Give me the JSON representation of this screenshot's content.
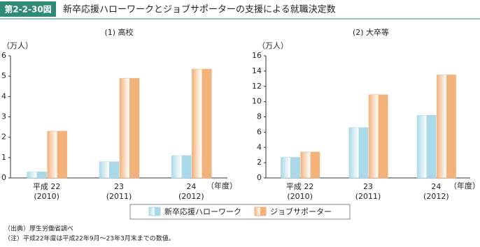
{
  "header": {
    "badge": "第2-2-30図",
    "title": "新卒応援ハローワークとジョブサポーターの支援による就職決定数"
  },
  "chart_data": [
    {
      "type": "bar",
      "subtitle": "(1) 高校",
      "y_label": "（万人）",
      "x_label": "（年度）",
      "categories": [
        [
          "平成 22",
          "(2010)"
        ],
        [
          "23",
          "(2011)"
        ],
        [
          "24",
          "(2012)"
        ]
      ],
      "series": [
        {
          "name": "新卒応援ハローワーク",
          "color": "#a9d9e8",
          "values": [
            0.3,
            0.8,
            1.1
          ]
        },
        {
          "name": "ジョブサポーター",
          "color": "#f2b27a",
          "values": [
            2.3,
            4.9,
            5.35
          ]
        }
      ],
      "ylim": [
        0,
        6
      ],
      "yticks": [
        0,
        1,
        2,
        3,
        4,
        5,
        6
      ],
      "grid": false
    },
    {
      "type": "bar",
      "subtitle": "(2) 大卒等",
      "y_label": "（万人）",
      "x_label": "（年度）",
      "categories": [
        [
          "平成 22",
          "(2010)"
        ],
        [
          "23",
          "(2011)"
        ],
        [
          "24",
          "(2012)"
        ]
      ],
      "series": [
        {
          "color": "#a9d9e8",
          "values": [
            2.7,
            6.6,
            8.2
          ]
        },
        {
          "color": "#f2b27a",
          "values": [
            3.4,
            10.9,
            13.5
          ]
        }
      ],
      "ylim": [
        0,
        16
      ],
      "yticks": [
        0,
        2,
        4,
        6,
        8,
        10,
        12,
        14,
        16
      ],
      "grid": false
    }
  ],
  "notes": [
    "（出典）厚生労働省調べ",
    "（注）平成22年度は平成22年9月～23年3月末までの数値。"
  ]
}
